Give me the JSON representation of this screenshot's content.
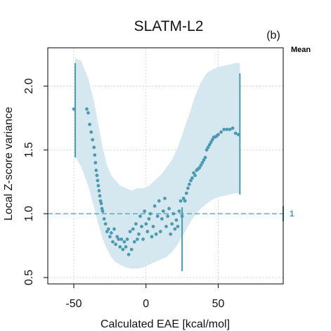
{
  "chart_data": {
    "type": "scatter",
    "title": "SLATM-L2",
    "panel_label": "(b)",
    "xlabel": "Calculated EAE [kcal/mol]",
    "ylabel": "Local Z-score variance",
    "xlim": [
      -68,
      95
    ],
    "ylim": [
      0.45,
      2.3
    ],
    "xticks": [
      -50,
      0,
      50
    ],
    "yticks": [
      0.5,
      1.0,
      1.5,
      2.0
    ],
    "ytick_labels": [
      "0.5",
      "1.0",
      "1.5",
      "2.0"
    ],
    "grid": true,
    "legend": {
      "label": "Mean",
      "position": "top-right"
    },
    "reference_line": {
      "y": 1.0,
      "label": "1",
      "style": "dashed"
    },
    "colors": {
      "points": "#4a9bb0",
      "band": "#d6e8ef",
      "reference": "#4a9bb0",
      "grid": "#c8c8c8"
    },
    "confidence_band": {
      "x": [
        -49,
        -45,
        -40,
        -36,
        -33,
        -30,
        -27,
        -24,
        -21,
        -18,
        -14,
        -10,
        -6,
        -2,
        2,
        6,
        10,
        14,
        18,
        22,
        26,
        30,
        34,
        38,
        42,
        46,
        50,
        54,
        58,
        62,
        65
      ],
      "upper": [
        2.22,
        2.2,
        2.06,
        1.88,
        1.7,
        1.52,
        1.38,
        1.3,
        1.26,
        1.22,
        1.2,
        1.18,
        1.2,
        1.2,
        1.22,
        1.26,
        1.3,
        1.36,
        1.42,
        1.52,
        1.65,
        1.78,
        1.92,
        2.03,
        2.1,
        2.13,
        2.15,
        2.16,
        2.17,
        2.18,
        2.18
      ],
      "lower": [
        1.45,
        1.37,
        1.22,
        1.05,
        0.92,
        0.8,
        0.72,
        0.66,
        0.62,
        0.6,
        0.58,
        0.57,
        0.57,
        0.58,
        0.6,
        0.62,
        0.64,
        0.66,
        0.7,
        0.76,
        0.84,
        0.92,
        0.99,
        1.04,
        1.08,
        1.11,
        1.13,
        1.14,
        1.15,
        1.16,
        1.16
      ]
    },
    "error_bars": [
      {
        "x": -49,
        "low": 1.44,
        "high": 2.18
      },
      {
        "x": 65,
        "low": 1.15,
        "high": 2.1
      },
      {
        "x": 95,
        "low": 0.94,
        "high": 1.06
      },
      {
        "x": 25,
        "low": 0.55,
        "high": 1.05
      }
    ],
    "x": [
      -50,
      -41,
      -40,
      -39,
      -38,
      -37,
      -36,
      -35.5,
      -35,
      -34.5,
      -34,
      -33.5,
      -33,
      -32.5,
      -32,
      -31.5,
      -31,
      -30.5,
      -30,
      -29,
      -28,
      -27,
      -26,
      -25,
      -24,
      -23,
      -22,
      -21,
      -20,
      -19,
      -18,
      -17,
      -16,
      -15,
      -14,
      -13,
      -12,
      -11,
      -10,
      -9,
      -8,
      -7,
      -6,
      -5,
      -4,
      -3,
      -2,
      -1,
      0,
      1,
      2,
      3,
      4,
      5,
      6,
      7,
      8,
      9,
      10,
      11,
      12,
      13,
      14,
      15,
      16,
      17,
      18,
      19,
      20,
      21,
      22,
      23,
      24,
      25,
      26,
      27,
      28,
      29,
      30,
      31,
      32,
      33,
      34,
      35,
      36,
      37,
      38,
      39,
      40,
      41,
      42,
      43,
      44,
      45,
      46,
      47,
      48,
      49,
      50,
      52,
      54,
      56,
      58,
      60,
      62,
      64
    ],
    "y": [
      1.82,
      1.82,
      1.79,
      1.7,
      1.64,
      1.58,
      1.52,
      1.46,
      1.4,
      1.34,
      1.3,
      1.26,
      1.22,
      1.18,
      1.14,
      1.1,
      1.08,
      1.04,
      1.02,
      0.96,
      0.92,
      0.86,
      0.88,
      0.82,
      0.85,
      0.78,
      0.88,
      0.76,
      0.82,
      0.8,
      0.74,
      0.8,
      0.72,
      0.78,
      0.74,
      0.8,
      0.68,
      0.86,
      0.72,
      0.88,
      0.78,
      0.92,
      0.8,
      0.84,
      0.98,
      0.9,
      0.8,
      1.02,
      0.92,
      0.86,
      0.96,
      1.0,
      0.82,
      0.9,
      1.06,
      0.84,
      0.98,
      1.1,
      0.86,
      0.96,
      1.02,
      1.12,
      0.9,
      0.98,
      1.04,
      0.84,
      0.92,
      1.0,
      0.88,
      0.95,
      0.9,
      1.02,
      1.1,
      0.98,
      1.12,
      1.1,
      1.16,
      1.2,
      1.23,
      1.26,
      1.28,
      1.32,
      1.3,
      1.34,
      1.35,
      1.36,
      1.38,
      1.4,
      1.42,
      1.44,
      1.5,
      1.52,
      1.54,
      1.56,
      1.58,
      1.6,
      1.6,
      1.61,
      1.62,
      1.64,
      1.66,
      1.66,
      1.66,
      1.67,
      1.63,
      1.62
    ]
  }
}
